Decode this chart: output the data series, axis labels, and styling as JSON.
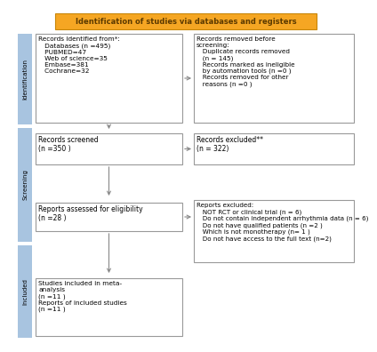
{
  "title": "Identification of studies via databases and registers",
  "title_bg": "#F5A623",
  "title_text_color": "#5C3A00",
  "box_border_color": "#999999",
  "box_fill": "#FFFFFF",
  "sidebar_color": "#A8C4E0",
  "arrow_color": "#888888",
  "box1_text": "Records identified from*:\n   Databases (n =495)\n   PUBMED=47\n   Web of science=35\n   Embase=381\n   Cochrane=32",
  "box2_text": "Records removed before\nscreening:\n   Duplicate records removed\n   (n = 145)\n   Records marked as ineligible\n   by automation tools (n =0 )\n   Records removed for other\n   reasons (n =0 )",
  "box3_text": "Records screened\n(n =350 )",
  "box4_text": "Records excluded**\n(n = 322)",
  "box5_text": "Reports assessed for eligibility\n(n =28 )",
  "box6_text": "Reports excluded:\n   NOT RCT or clinical trial (n = 6)\n   Do not contain independent arrhythmia data (n = 6)\n   Do not have qualified patients (n =2 )\n   Which is not monotherapy (n= 1 )\n   Do not have access to the full text (n=2)",
  "box7_text": "Studies included in meta-\nanalysis\n(n =11 )\nReports of included studies\n(n =11 )"
}
